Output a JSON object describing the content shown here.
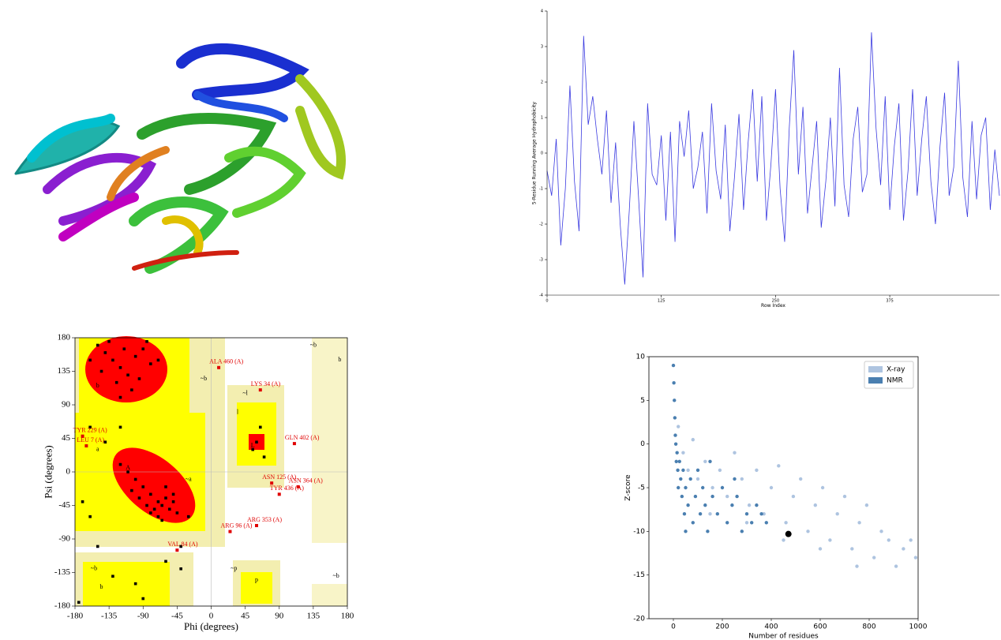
{
  "chart_data": [
    {
      "type": "line",
      "xlabel": "Row Index",
      "ylabel": "5-Residue Running Average Hydrophobicity",
      "xlim": [
        0,
        495
      ],
      "ylim": [
        -4,
        4
      ],
      "xticks": [
        0,
        125,
        250,
        375
      ],
      "yticks": [
        -4,
        -3,
        -2,
        -1,
        0,
        1,
        2,
        3,
        4
      ],
      "color": "#3a3ae0",
      "x": [
        0,
        5,
        10,
        15,
        20,
        25,
        30,
        35,
        40,
        45,
        50,
        55,
        60,
        65,
        70,
        75,
        80,
        85,
        90,
        95,
        100,
        105,
        110,
        115,
        120,
        125,
        130,
        135,
        140,
        145,
        150,
        155,
        160,
        165,
        170,
        175,
        180,
        185,
        190,
        195,
        200,
        205,
        210,
        215,
        220,
        225,
        230,
        235,
        240,
        245,
        250,
        255,
        260,
        265,
        270,
        275,
        280,
        285,
        290,
        295,
        300,
        305,
        310,
        315,
        320,
        325,
        330,
        335,
        340,
        345,
        350,
        355,
        360,
        365,
        370,
        375,
        380,
        385,
        390,
        395,
        400,
        405,
        410,
        415,
        420,
        425,
        430,
        435,
        440,
        445,
        450,
        455,
        460,
        465,
        470,
        475,
        480,
        485,
        490,
        495
      ],
      "values": [
        -0.5,
        -1.2,
        0.4,
        -2.6,
        -1.0,
        1.9,
        -0.8,
        -2.2,
        3.3,
        0.8,
        1.6,
        0.4,
        -0.6,
        1.2,
        -1.4,
        0.3,
        -2.0,
        -3.7,
        -1.6,
        0.9,
        -1.2,
        -3.5,
        1.4,
        -0.6,
        -0.9,
        0.5,
        -1.9,
        0.6,
        -2.5,
        0.9,
        -0.1,
        1.2,
        -1.0,
        -0.4,
        0.6,
        -1.7,
        1.4,
        -0.5,
        -1.3,
        0.8,
        -2.2,
        -0.7,
        1.1,
        -1.6,
        0.3,
        1.8,
        -0.8,
        1.6,
        -1.9,
        -0.3,
        1.8,
        -1.0,
        -2.5,
        0.7,
        2.9,
        -0.6,
        1.3,
        -1.7,
        -0.4,
        0.9,
        -2.1,
        -0.8,
        1.0,
        -1.5,
        2.4,
        -0.9,
        -1.8,
        0.4,
        1.3,
        -1.1,
        -0.6,
        3.4,
        0.7,
        -0.9,
        1.6,
        -1.6,
        0.2,
        1.4,
        -1.9,
        -0.5,
        1.8,
        -1.2,
        0.4,
        1.6,
        -0.8,
        -2.0,
        0.2,
        1.7,
        -1.2,
        -0.4,
        2.6,
        -0.7,
        -1.8,
        0.9,
        -1.3,
        0.5,
        1.0,
        -1.6,
        0.1,
        -1.2
      ]
    },
    {
      "type": "scatter",
      "xlabel": "Phi (degrees)",
      "ylabel": "Psi (degrees)",
      "xlim": [
        -180,
        180
      ],
      "ylim": [
        -180,
        180
      ],
      "xticks": [
        -180,
        -135,
        -90,
        -45,
        0,
        45,
        90,
        135,
        180
      ],
      "yticks": [
        -180,
        -135,
        -90,
        -45,
        0,
        45,
        90,
        135,
        180
      ],
      "marker": "square",
      "series": [
        {
          "color": "#000000",
          "x": [
            -150,
            -140,
            -130,
            -120,
            -110,
            -100,
            -90,
            -80,
            -125,
            -135,
            -115,
            -95,
            -145,
            -70,
            -105,
            -160,
            -85,
            -120,
            -80,
            -70,
            -65,
            -60,
            -75,
            -90,
            -100,
            -55,
            -50,
            -85,
            -70,
            -110,
            -95,
            -60,
            -45,
            -120,
            -65,
            -80,
            -105,
            -50,
            -170,
            -160,
            -150,
            -130,
            -100,
            -90,
            -60,
            -40,
            -175,
            60,
            55,
            70,
            65,
            -30,
            -140,
            -120,
            -160,
            -40
          ],
          "values": [
            170,
            160,
            150,
            140,
            130,
            155,
            165,
            145,
            120,
            175,
            165,
            125,
            135,
            150,
            110,
            150,
            175,
            100,
            -30,
            -40,
            -45,
            -35,
            -50,
            -20,
            -10,
            -50,
            -40,
            -45,
            -60,
            0,
            -35,
            -20,
            -55,
            10,
            -65,
            -55,
            -25,
            -30,
            -40,
            60,
            -100,
            -140,
            -150,
            -170,
            -120,
            -130,
            -175,
            40,
            30,
            20,
            60,
            -60,
            40,
            60,
            -60,
            -100
          ]
        }
      ],
      "annotation_color": "#e00000",
      "annotations": [
        {
          "text": "ALA 460 (A)",
          "x": 10,
          "y": 140
        },
        {
          "text": "LYS 34 (A)",
          "x": 65,
          "y": 110
        },
        {
          "text": "TYR 229 (A)",
          "x": -170,
          "y": 48
        },
        {
          "text": "LEU 7 (A)",
          "x": -165,
          "y": 35
        },
        {
          "text": "GLN 402 (A)",
          "x": 110,
          "y": 38
        },
        {
          "text": "ASN 125 (A)",
          "x": 80,
          "y": -15
        },
        {
          "text": "ASN 364 (A)",
          "x": 115,
          "y": -20
        },
        {
          "text": "TYR 436 (A)",
          "x": 90,
          "y": -30
        },
        {
          "text": "ARG 353 (A)",
          "x": 60,
          "y": -72
        },
        {
          "text": "ARG 96 (A)",
          "x": 25,
          "y": -80
        },
        {
          "text": "VAL 84 (A)",
          "x": -45,
          "y": -105
        }
      ],
      "region_labels": [
        {
          "text": "b",
          "x": -150,
          "y": 115
        },
        {
          "text": "A",
          "x": -110,
          "y": 5
        },
        {
          "text": "a",
          "x": -150,
          "y": 30
        },
        {
          "text": "L",
          "x": 55,
          "y": 35
        },
        {
          "text": "l",
          "x": 35,
          "y": 80
        },
        {
          "text": "~a",
          "x": -30,
          "y": -10
        },
        {
          "text": "~b",
          "x": -10,
          "y": 125
        },
        {
          "text": "~l",
          "x": 45,
          "y": 105
        },
        {
          "text": "p",
          "x": 60,
          "y": -145
        },
        {
          "text": "~p",
          "x": 30,
          "y": -130
        },
        {
          "text": "~b",
          "x": 135,
          "y": 170
        },
        {
          "text": "b",
          "x": 170,
          "y": 150
        },
        {
          "text": "~b",
          "x": -155,
          "y": -130
        },
        {
          "text": "b",
          "x": -145,
          "y": -155
        },
        {
          "text": "~b",
          "x": 165,
          "y": -140
        }
      ]
    },
    {
      "type": "scatter",
      "xlabel": "Number of residues",
      "ylabel": "Z-score",
      "xlim": [
        -100,
        1000
      ],
      "ylim": [
        -20,
        10
      ],
      "xticks": [
        0,
        200,
        400,
        600,
        800,
        1000
      ],
      "yticks": [
        -20,
        -15,
        -10,
        -5,
        0,
        5,
        10
      ],
      "marker": "circle",
      "legend": "upper right",
      "series": [
        {
          "name": "X-ray",
          "color": "#aec4e0",
          "x": [
            20,
            40,
            60,
            80,
            100,
            130,
            160,
            190,
            220,
            250,
            280,
            310,
            340,
            370,
            400,
            430,
            460,
            490,
            520,
            550,
            580,
            610,
            640,
            670,
            700,
            730,
            760,
            790,
            820,
            850,
            880,
            910,
            940,
            970,
            990,
            150,
            300,
            450,
            600,
            750
          ],
          "values": [
            2,
            -1,
            -3,
            0.5,
            -4,
            -2,
            -5,
            -3,
            -6,
            -1,
            -4,
            -7,
            -3,
            -8,
            -5,
            -2.5,
            -9,
            -6,
            -4,
            -10,
            -7,
            -5,
            -11,
            -8,
            -6,
            -12,
            -9,
            -7,
            -13,
            -10,
            -11,
            -14,
            -12,
            -11,
            -13,
            -8,
            -9,
            -11,
            -12,
            -14
          ]
        },
        {
          "name": "NMR",
          "color": "#4a7fb0",
          "x": [
            0,
            2,
            4,
            6,
            8,
            10,
            12,
            15,
            18,
            20,
            25,
            30,
            35,
            40,
            45,
            50,
            60,
            70,
            80,
            90,
            100,
            110,
            120,
            130,
            140,
            160,
            180,
            200,
            220,
            240,
            260,
            280,
            300,
            320,
            340,
            360,
            380,
            50,
            150,
            250
          ],
          "values": [
            9,
            7,
            5,
            3,
            1,
            0,
            -2,
            -1,
            -3,
            -5,
            -2,
            -4,
            -6,
            -3,
            -8,
            -5,
            -7,
            -4,
            -9,
            -6,
            -3,
            -8,
            -5,
            -7,
            -10,
            -6,
            -8,
            -5,
            -9,
            -7,
            -6,
            -10,
            -8,
            -9,
            -7,
            -8,
            -9,
            -10,
            -2,
            -4
          ]
        },
        {
          "color": "#000000",
          "size": 4,
          "x": [
            470
          ],
          "values": [
            -10.3
          ]
        }
      ]
    }
  ]
}
